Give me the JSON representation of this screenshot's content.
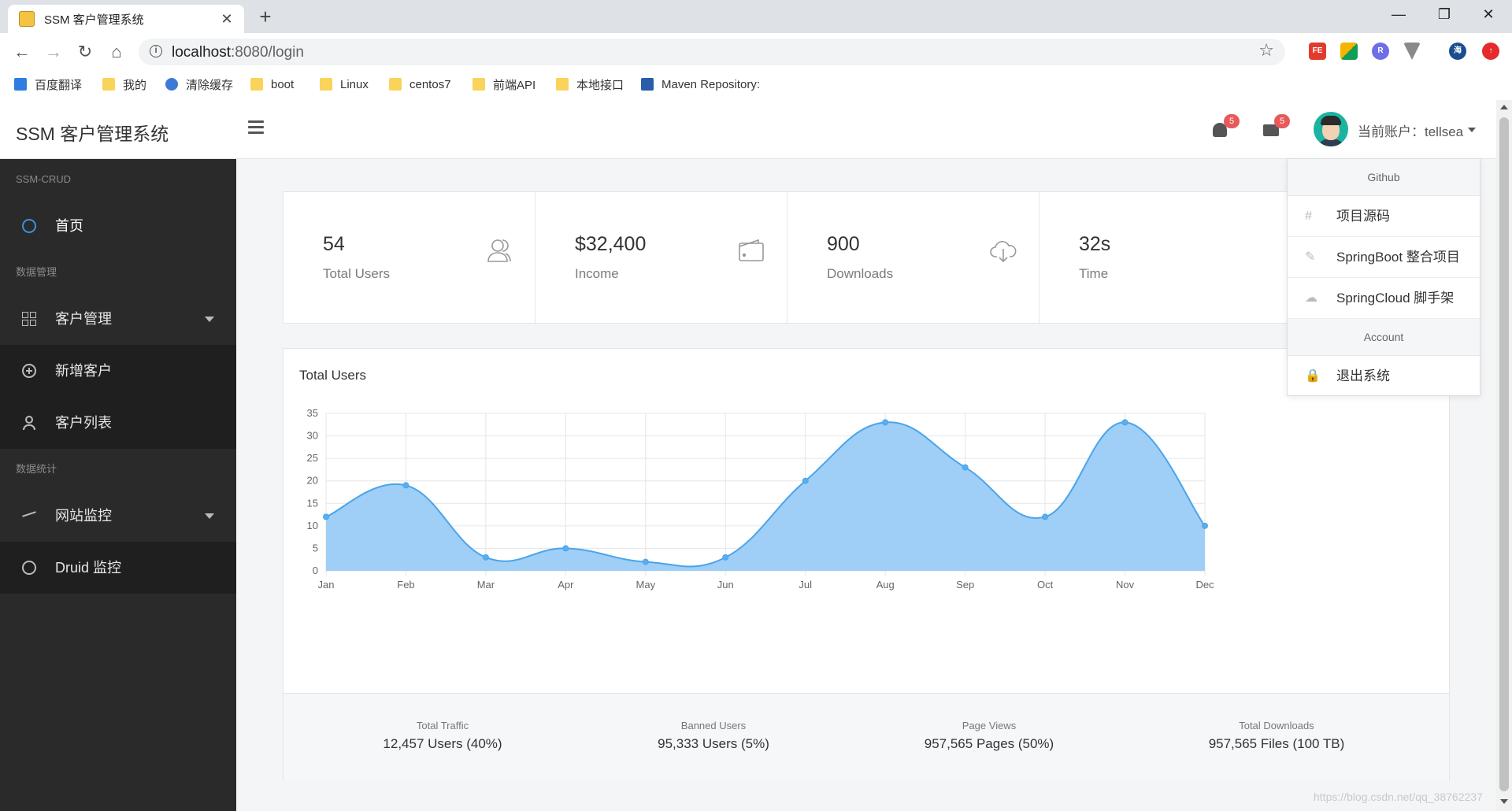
{
  "browser": {
    "tab_title": "SSM 客户管理系统",
    "tab_close": "✕",
    "new_tab": "+",
    "url_host": "localhost",
    "url_path": ":8080/login",
    "bookmarks": [
      "百度翻译",
      "我的",
      "清除缓存",
      "boot",
      "Linux",
      "centos7",
      "前端API",
      "本地接口",
      "Maven Repository:"
    ],
    "window_controls": [
      "—",
      "❐",
      "✕"
    ]
  },
  "header": {
    "brand": "SSM 客户管理系统",
    "notifications_count": "5",
    "messages_count": "5",
    "account_label": "当前账户：tellsea"
  },
  "sidebar": {
    "section_1": "SSM-CRUD",
    "home": "首页",
    "section_2": "数据管理",
    "customer_mgmt": "客户管理",
    "add_customer": "新增客户",
    "customer_list": "客户列表",
    "section_3": "数据统计",
    "site_monitor": "网站监控",
    "druid_monitor": "Druid 监控"
  },
  "cards": [
    {
      "value": "54",
      "label": "Total Users",
      "icon": "users-icon"
    },
    {
      "value": "$32,400",
      "label": "Income",
      "icon": "wallet-icon"
    },
    {
      "value": "900",
      "label": "Downloads",
      "icon": "cloud-download-icon"
    },
    {
      "value": "32s",
      "label": "Time",
      "icon": "clock-icon"
    }
  ],
  "chart": {
    "title": "Total Users"
  },
  "chart_data": {
    "type": "area",
    "title": "Total Users",
    "categories": [
      "Jan",
      "Feb",
      "Mar",
      "Apr",
      "May",
      "Jun",
      "Jul",
      "Aug",
      "Sep",
      "Oct",
      "Nov",
      "Dec"
    ],
    "series": [
      {
        "values": [
          12,
          19,
          3,
          5,
          2,
          3,
          20,
          33,
          23,
          12,
          33,
          10
        ]
      }
    ],
    "ylim": [
      0,
      35
    ],
    "yticks": [
      0,
      5,
      10,
      15,
      20,
      25,
      30,
      35
    ],
    "grid": true,
    "fill_color": "#9fcff6",
    "line_color": "#4aa4ea"
  },
  "footer_stats": [
    {
      "label": "Total Traffic",
      "value": "12,457 Users (40%)"
    },
    {
      "label": "Banned Users",
      "value": "95,333 Users (5%)"
    },
    {
      "label": "Page Views",
      "value": "957,565 Pages (50%)"
    },
    {
      "label": "Total Downloads",
      "value": "957,565 Files (100 TB)"
    }
  ],
  "dropdown": {
    "header_1": "Github",
    "item_source": "项目源码",
    "item_springboot": "SpringBoot 整合项目",
    "item_springcloud": "SpringCloud 脚手架",
    "header_2": "Account",
    "item_logout": "退出系统"
  },
  "watermark": "https://blog.csdn.net/qq_38762237"
}
